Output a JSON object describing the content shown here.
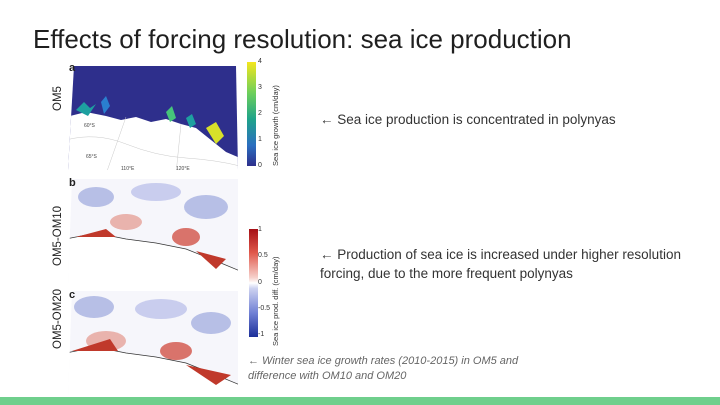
{
  "slide": {
    "title": "Effects of forcing resolution: sea ice production",
    "row_labels": [
      "OM5",
      "OM5-OM10",
      "OM5-OM20"
    ],
    "panels": [
      "a",
      "b",
      "c"
    ],
    "colorbar_top": {
      "title": "Sea ice growth (cm/day)",
      "ticks": [
        "4",
        "3",
        "2",
        "1",
        "0"
      ]
    },
    "colorbar_bottom": {
      "title": "Sea ice prod. diff. (cm/day)",
      "ticks": [
        "1",
        "0.5",
        "0",
        "-0.5",
        "-1"
      ]
    },
    "map_labels": [
      "60°S",
      "65°S",
      "110°E",
      "120°E"
    ],
    "notes": [
      "← Sea ice production is concentrated in polynyas",
      "← Production of sea ice is increased under higher resolution forcing, due to the more frequent polynyas"
    ],
    "caption": "← Winter sea ice growth rates (2010-2015) in OM5 and difference with OM10 and OM20",
    "colors": {
      "accent_bar": "#6fcf8c",
      "ocean_dark": "#2e2f8c",
      "land": "#ffffff",
      "pos": "#c0392b",
      "neg": "#3b4fb8"
    }
  }
}
